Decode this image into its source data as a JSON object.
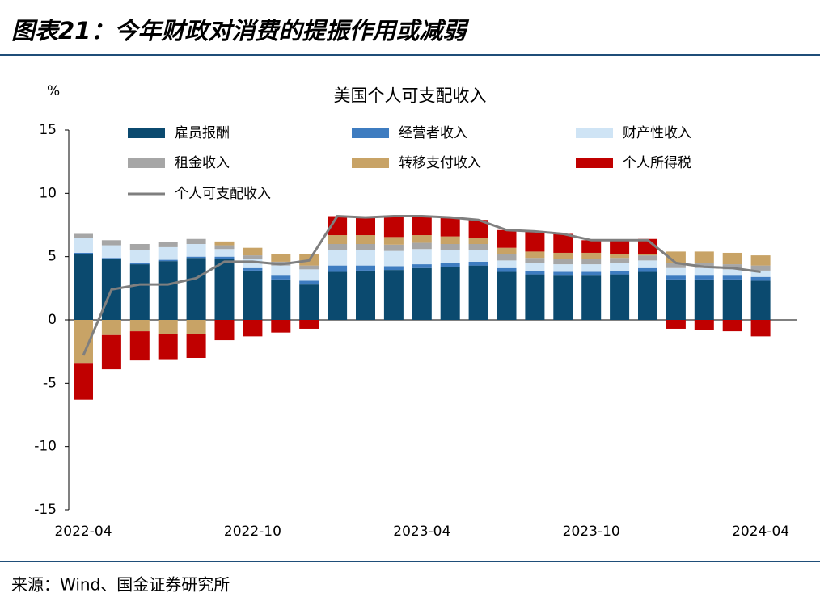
{
  "header": {
    "title": "图表21：今年财政对消费的提振作用或减弱"
  },
  "chart_data": {
    "type": "stacked_bar_line",
    "title": "美国个人可支配收入",
    "y_unit": "%",
    "categories": [
      "2022-04",
      null,
      null,
      null,
      null,
      null,
      "2022-10",
      null,
      null,
      null,
      null,
      null,
      "2023-04",
      null,
      null,
      null,
      null,
      null,
      "2023-10",
      null,
      null,
      null,
      null,
      null,
      "2024-04"
    ],
    "ylim": [
      -15,
      15
    ],
    "yticks": [
      -15,
      -10,
      -5,
      0,
      5,
      10,
      15
    ],
    "series": [
      {
        "name": "雇员报酬",
        "color": "#0b4a6f",
        "values": [
          5.2,
          4.8,
          4.4,
          4.65,
          4.9,
          4.8,
          3.9,
          3.2,
          2.8,
          3.8,
          3.9,
          3.95,
          4.1,
          4.2,
          4.3,
          3.8,
          3.6,
          3.5,
          3.5,
          3.6,
          3.8,
          3.2,
          3.2,
          3.2,
          3.1
        ]
      },
      {
        "name": "经营者收入",
        "color": "#3e7cc0",
        "values": [
          0.1,
          0.1,
          0.1,
          0.1,
          0.1,
          0.2,
          0.2,
          0.3,
          0.3,
          0.5,
          0.4,
          0.3,
          0.3,
          0.3,
          0.3,
          0.3,
          0.3,
          0.3,
          0.3,
          0.3,
          0.3,
          0.3,
          0.3,
          0.3,
          0.3
        ]
      },
      {
        "name": "财产性收入",
        "color": "#cfe4f5",
        "values": [
          1.2,
          1.0,
          1.0,
          1.0,
          1.0,
          0.6,
          0.7,
          0.8,
          0.9,
          1.2,
          1.2,
          1.2,
          1.2,
          1.0,
          0.9,
          0.6,
          0.6,
          0.6,
          0.6,
          0.6,
          0.6,
          0.6,
          0.6,
          0.5,
          0.5
        ]
      },
      {
        "name": "租金收入",
        "color": "#a6a6a6",
        "values": [
          0.3,
          0.4,
          0.5,
          0.4,
          0.4,
          0.3,
          0.3,
          0.3,
          0.3,
          0.5,
          0.5,
          0.5,
          0.5,
          0.5,
          0.5,
          0.5,
          0.4,
          0.4,
          0.4,
          0.4,
          0.4,
          0.4,
          0.4,
          0.4,
          0.4
        ]
      },
      {
        "name": "转移支付收入",
        "color": "#c8a366",
        "values": [
          -3.4,
          -1.2,
          -0.9,
          -1.1,
          -1.1,
          0.3,
          0.6,
          0.6,
          0.9,
          0.7,
          0.7,
          0.6,
          0.6,
          0.6,
          0.5,
          0.5,
          0.5,
          0.5,
          0.5,
          0.3,
          0.1,
          0.9,
          0.9,
          0.9,
          0.8
        ]
      },
      {
        "name": "个人所得税",
        "color": "#c00000",
        "values": [
          -2.9,
          -2.7,
          -2.3,
          -2.0,
          -1.9,
          -1.6,
          -1.3,
          -1.0,
          -0.7,
          1.5,
          1.4,
          1.65,
          1.5,
          1.5,
          1.4,
          1.4,
          1.6,
          1.5,
          1.0,
          1.1,
          1.2,
          -0.7,
          -0.8,
          -0.9,
          -1.3
        ]
      },
      {
        "name": "个人可支配收入",
        "type": "line",
        "color": "#7f7f7f",
        "values": [
          -2.8,
          2.4,
          2.8,
          2.8,
          3.3,
          4.6,
          4.6,
          4.4,
          4.7,
          8.2,
          8.1,
          8.2,
          8.2,
          8.1,
          7.9,
          7.1,
          7.0,
          6.8,
          6.3,
          6.3,
          6.3,
          4.5,
          4.2,
          4.1,
          3.8
        ]
      }
    ]
  },
  "footer": {
    "source": "来源：Wind、国金证券研究所"
  }
}
